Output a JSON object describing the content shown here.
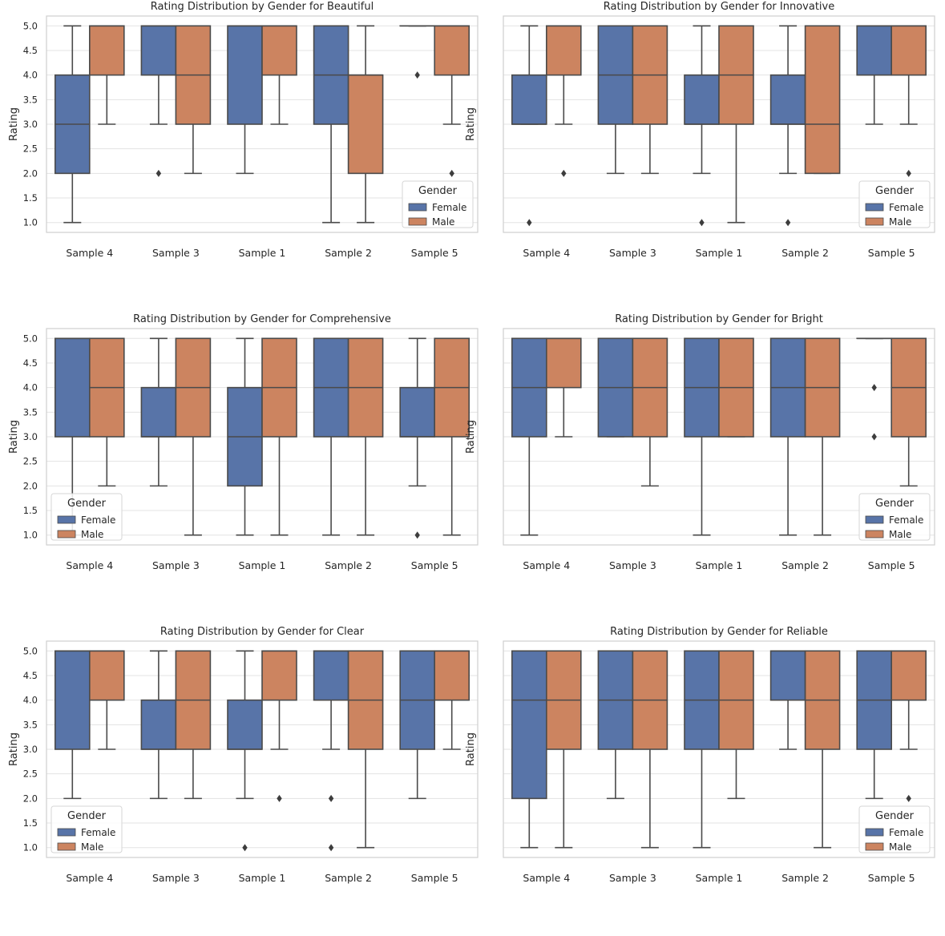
{
  "colors": {
    "female": "#5874a8",
    "male": "#cc8460",
    "edge": "#4a4a4a",
    "grid": "#e3e3e3",
    "frame": "#cfcfcf",
    "text": "#262626"
  },
  "legend": {
    "title": "Gender",
    "entries": [
      "Female",
      "Male"
    ]
  },
  "chart_data": [
    {
      "type": "boxplot",
      "title": "Rating Distribution by Gender for Beautiful",
      "ylabel": "Rating",
      "show_yticks": true,
      "legend_loc": "lower-right",
      "ylim": [
        0.8,
        5.2
      ],
      "yticks": [
        "5.0",
        "4.5",
        "4.0",
        "3.5",
        "3.0",
        "2.5",
        "2.0",
        "1.5",
        "1.0"
      ],
      "categories": [
        "Sample 4",
        "Sample 3",
        "Sample 1",
        "Sample 2",
        "Sample 5"
      ],
      "series": [
        {
          "name": "Female",
          "boxes": [
            {
              "q1": 2,
              "med": 3,
              "q3": 4,
              "wlo": 1,
              "whi": 5,
              "out": []
            },
            {
              "q1": 4,
              "med": 5,
              "q3": 5,
              "wlo": 3,
              "whi": 5,
              "out": [
                2
              ]
            },
            {
              "q1": 3,
              "med": 5,
              "q3": 5,
              "wlo": 2,
              "whi": 5,
              "out": []
            },
            {
              "q1": 3,
              "med": 4,
              "q3": 5,
              "wlo": 1,
              "whi": 5,
              "out": []
            },
            {
              "q1": 5,
              "med": 5,
              "q3": 5,
              "wlo": 5,
              "whi": 5,
              "out": [
                4
              ]
            }
          ]
        },
        {
          "name": "Male",
          "boxes": [
            {
              "q1": 4,
              "med": 5,
              "q3": 5,
              "wlo": 3,
              "whi": 5,
              "out": []
            },
            {
              "q1": 3,
              "med": 4,
              "q3": 5,
              "wlo": 2,
              "whi": 5,
              "out": []
            },
            {
              "q1": 4,
              "med": 5,
              "q3": 5,
              "wlo": 3,
              "whi": 5,
              "out": []
            },
            {
              "q1": 2,
              "med": 4,
              "q3": 4,
              "wlo": 1,
              "whi": 5,
              "out": []
            },
            {
              "q1": 4,
              "med": 5,
              "q3": 5,
              "wlo": 3,
              "whi": 5,
              "out": [
                2
              ]
            }
          ]
        }
      ]
    },
    {
      "type": "boxplot",
      "title": "Rating Distribution by Gender for Innovative",
      "ylabel": "Rating",
      "show_yticks": false,
      "legend_loc": "lower-right",
      "ylim": [
        0.8,
        5.2
      ],
      "yticks": [
        "5.0",
        "4.5",
        "4.0",
        "3.5",
        "3.0",
        "2.5",
        "2.0",
        "1.5",
        "1.0"
      ],
      "categories": [
        "Sample 4",
        "Sample 3",
        "Sample 1",
        "Sample 2",
        "Sample 5"
      ],
      "series": [
        {
          "name": "Female",
          "boxes": [
            {
              "q1": 3,
              "med": 3,
              "q3": 4,
              "wlo": 3,
              "whi": 5,
              "out": [
                1
              ]
            },
            {
              "q1": 3,
              "med": 4,
              "q3": 5,
              "wlo": 2,
              "whi": 5,
              "out": []
            },
            {
              "q1": 3,
              "med": 3,
              "q3": 4,
              "wlo": 2,
              "whi": 5,
              "out": [
                1
              ]
            },
            {
              "q1": 3,
              "med": 3,
              "q3": 4,
              "wlo": 2,
              "whi": 5,
              "out": [
                1
              ]
            },
            {
              "q1": 4,
              "med": 5,
              "q3": 5,
              "wlo": 3,
              "whi": 5,
              "out": []
            }
          ]
        },
        {
          "name": "Male",
          "boxes": [
            {
              "q1": 4,
              "med": 5,
              "q3": 5,
              "wlo": 3,
              "whi": 5,
              "out": [
                2
              ]
            },
            {
              "q1": 3,
              "med": 4,
              "q3": 5,
              "wlo": 2,
              "whi": 5,
              "out": []
            },
            {
              "q1": 3,
              "med": 4,
              "q3": 5,
              "wlo": 1,
              "whi": 5,
              "out": []
            },
            {
              "q1": 2,
              "med": 3,
              "q3": 5,
              "wlo": 2,
              "whi": 5,
              "out": []
            },
            {
              "q1": 4,
              "med": 5,
              "q3": 5,
              "wlo": 3,
              "whi": 5,
              "out": [
                2
              ]
            }
          ]
        }
      ]
    },
    {
      "type": "boxplot",
      "title": "Rating Distribution by Gender for Comprehensive",
      "ylabel": "Rating",
      "show_yticks": true,
      "legend_loc": "lower-left",
      "ylim": [
        0.8,
        5.2
      ],
      "yticks": [
        "5.0",
        "4.5",
        "4.0",
        "3.5",
        "3.0",
        "2.5",
        "2.0",
        "1.5",
        "1.0"
      ],
      "categories": [
        "Sample 4",
        "Sample 3",
        "Sample 1",
        "Sample 2",
        "Sample 5"
      ],
      "series": [
        {
          "name": "Female",
          "boxes": [
            {
              "q1": 3,
              "med": 5,
              "q3": 5,
              "wlo": 1,
              "whi": 5,
              "out": []
            },
            {
              "q1": 3,
              "med": 3,
              "q3": 4,
              "wlo": 2,
              "whi": 5,
              "out": []
            },
            {
              "q1": 2,
              "med": 3,
              "q3": 4,
              "wlo": 1,
              "whi": 5,
              "out": []
            },
            {
              "q1": 3,
              "med": 4,
              "q3": 5,
              "wlo": 1,
              "whi": 5,
              "out": []
            },
            {
              "q1": 3,
              "med": 3,
              "q3": 4,
              "wlo": 2,
              "whi": 5,
              "out": [
                1
              ]
            }
          ]
        },
        {
          "name": "Male",
          "boxes": [
            {
              "q1": 3,
              "med": 4,
              "q3": 5,
              "wlo": 2,
              "whi": 5,
              "out": []
            },
            {
              "q1": 3,
              "med": 4,
              "q3": 5,
              "wlo": 1,
              "whi": 5,
              "out": []
            },
            {
              "q1": 3,
              "med": 4,
              "q3": 5,
              "wlo": 1,
              "whi": 5,
              "out": []
            },
            {
              "q1": 3,
              "med": 4,
              "q3": 5,
              "wlo": 1,
              "whi": 5,
              "out": []
            },
            {
              "q1": 3,
              "med": 4,
              "q3": 5,
              "wlo": 1,
              "whi": 5,
              "out": []
            }
          ]
        }
      ]
    },
    {
      "type": "boxplot",
      "title": "Rating Distribution by Gender for Bright",
      "ylabel": "Rating",
      "show_yticks": false,
      "legend_loc": "lower-right",
      "ylim": [
        0.8,
        5.2
      ],
      "yticks": [
        "5.0",
        "4.5",
        "4.0",
        "3.5",
        "3.0",
        "2.5",
        "2.0",
        "1.5",
        "1.0"
      ],
      "categories": [
        "Sample 4",
        "Sample 3",
        "Sample 1",
        "Sample 2",
        "Sample 5"
      ],
      "series": [
        {
          "name": "Female",
          "boxes": [
            {
              "q1": 3,
              "med": 4,
              "q3": 5,
              "wlo": 1,
              "whi": 5,
              "out": []
            },
            {
              "q1": 3,
              "med": 4,
              "q3": 5,
              "wlo": 3,
              "whi": 5,
              "out": []
            },
            {
              "q1": 3,
              "med": 4,
              "q3": 5,
              "wlo": 1,
              "whi": 5,
              "out": []
            },
            {
              "q1": 3,
              "med": 4,
              "q3": 5,
              "wlo": 1,
              "whi": 5,
              "out": []
            },
            {
              "q1": 5,
              "med": 5,
              "q3": 5,
              "wlo": 5,
              "whi": 5,
              "out": [
                4,
                3
              ]
            }
          ]
        },
        {
          "name": "Male",
          "boxes": [
            {
              "q1": 4,
              "med": 5,
              "q3": 5,
              "wlo": 3,
              "whi": 5,
              "out": []
            },
            {
              "q1": 3,
              "med": 4,
              "q3": 5,
              "wlo": 2,
              "whi": 5,
              "out": []
            },
            {
              "q1": 3,
              "med": 4,
              "q3": 5,
              "wlo": 3,
              "whi": 5,
              "out": []
            },
            {
              "q1": 3,
              "med": 4,
              "q3": 5,
              "wlo": 1,
              "whi": 5,
              "out": []
            },
            {
              "q1": 3,
              "med": 4,
              "q3": 5,
              "wlo": 2,
              "whi": 5,
              "out": []
            }
          ]
        }
      ]
    },
    {
      "type": "boxplot",
      "title": "Rating Distribution by Gender for Clear",
      "ylabel": "Rating",
      "show_yticks": true,
      "legend_loc": "lower-left",
      "ylim": [
        0.8,
        5.2
      ],
      "yticks": [
        "5.0",
        "4.5",
        "4.0",
        "3.5",
        "3.0",
        "2.5",
        "2.0",
        "1.5",
        "1.0"
      ],
      "categories": [
        "Sample 4",
        "Sample 3",
        "Sample 1",
        "Sample 2",
        "Sample 5"
      ],
      "series": [
        {
          "name": "Female",
          "boxes": [
            {
              "q1": 3,
              "med": 5,
              "q3": 5,
              "wlo": 2,
              "whi": 5,
              "out": []
            },
            {
              "q1": 3,
              "med": 3,
              "q3": 4,
              "wlo": 2,
              "whi": 5,
              "out": []
            },
            {
              "q1": 3,
              "med": 3,
              "q3": 4,
              "wlo": 2,
              "whi": 5,
              "out": [
                1
              ]
            },
            {
              "q1": 4,
              "med": 5,
              "q3": 5,
              "wlo": 3,
              "whi": 5,
              "out": [
                2,
                1
              ]
            },
            {
              "q1": 3,
              "med": 4,
              "q3": 5,
              "wlo": 2,
              "whi": 5,
              "out": []
            }
          ]
        },
        {
          "name": "Male",
          "boxes": [
            {
              "q1": 4,
              "med": 5,
              "q3": 5,
              "wlo": 3,
              "whi": 5,
              "out": []
            },
            {
              "q1": 3,
              "med": 4,
              "q3": 5,
              "wlo": 2,
              "whi": 5,
              "out": []
            },
            {
              "q1": 4,
              "med": 5,
              "q3": 5,
              "wlo": 3,
              "whi": 5,
              "out": [
                2
              ]
            },
            {
              "q1": 3,
              "med": 4,
              "q3": 5,
              "wlo": 1,
              "whi": 5,
              "out": []
            },
            {
              "q1": 4,
              "med": 5,
              "q3": 5,
              "wlo": 3,
              "whi": 5,
              "out": []
            }
          ]
        }
      ]
    },
    {
      "type": "boxplot",
      "title": "Rating Distribution by Gender for Reliable",
      "ylabel": "Rating",
      "show_yticks": false,
      "legend_loc": "lower-right",
      "ylim": [
        0.8,
        5.2
      ],
      "yticks": [
        "5.0",
        "4.5",
        "4.0",
        "3.5",
        "3.0",
        "2.5",
        "2.0",
        "1.5",
        "1.0"
      ],
      "categories": [
        "Sample 4",
        "Sample 3",
        "Sample 1",
        "Sample 2",
        "Sample 5"
      ],
      "series": [
        {
          "name": "Female",
          "boxes": [
            {
              "q1": 2,
              "med": 4,
              "q3": 5,
              "wlo": 1,
              "whi": 5,
              "out": []
            },
            {
              "q1": 3,
              "med": 4,
              "q3": 5,
              "wlo": 2,
              "whi": 5,
              "out": []
            },
            {
              "q1": 3,
              "med": 4,
              "q3": 5,
              "wlo": 1,
              "whi": 5,
              "out": []
            },
            {
              "q1": 4,
              "med": 5,
              "q3": 5,
              "wlo": 3,
              "whi": 5,
              "out": []
            },
            {
              "q1": 3,
              "med": 4,
              "q3": 5,
              "wlo": 2,
              "whi": 5,
              "out": []
            }
          ]
        },
        {
          "name": "Male",
          "boxes": [
            {
              "q1": 3,
              "med": 4,
              "q3": 5,
              "wlo": 1,
              "whi": 5,
              "out": []
            },
            {
              "q1": 3,
              "med": 4,
              "q3": 5,
              "wlo": 1,
              "whi": 5,
              "out": []
            },
            {
              "q1": 3,
              "med": 4,
              "q3": 5,
              "wlo": 2,
              "whi": 5,
              "out": []
            },
            {
              "q1": 3,
              "med": 4,
              "q3": 5,
              "wlo": 1,
              "whi": 5,
              "out": []
            },
            {
              "q1": 4,
              "med": 5,
              "q3": 5,
              "wlo": 3,
              "whi": 5,
              "out": [
                2
              ]
            }
          ]
        }
      ]
    }
  ]
}
